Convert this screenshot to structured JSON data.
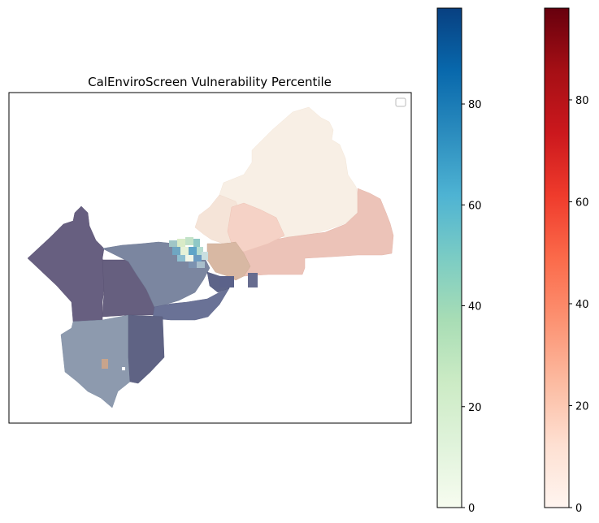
{
  "map": {
    "title": "CalEnviroScreen Vulnerability Percentile",
    "legend_visible": true,
    "legend_entries": [],
    "legend_placement": "upper-right",
    "axes_ticks": "hidden"
  },
  "colorbars": [
    {
      "id": "blue",
      "colormap": "GnBu",
      "range": [
        0,
        99
      ],
      "ticks": [
        0,
        20,
        40,
        60,
        80
      ],
      "tick_labels": [
        "0",
        "20",
        "40",
        "60",
        "80"
      ],
      "stops": [
        "#f7fcf0",
        "#e0f3db",
        "#ccebc5",
        "#a8ddb5",
        "#7bccc4",
        "#4eb3d3",
        "#2b8cbe",
        "#0868ac",
        "#084081"
      ]
    },
    {
      "id": "red",
      "colormap": "Reds",
      "range": [
        0,
        98
      ],
      "ticks": [
        0,
        20,
        40,
        60,
        80
      ],
      "tick_labels": [
        "0",
        "20",
        "40",
        "60",
        "80"
      ],
      "stops": [
        "#fff5f0",
        "#fee0d2",
        "#fcbba1",
        "#fc9272",
        "#fb6a4a",
        "#ef3b2c",
        "#cb181d",
        "#a50f15",
        "#67000d"
      ]
    }
  ],
  "regions_palette": {
    "dark_slate": "#675f80",
    "slate_blue": "#7b86a0",
    "grey_blue": "#8d9aae",
    "light_cream": "#f8efe5",
    "peach_light": "#f5d7cc",
    "peach": "#ecc3b8",
    "navy_slate": "#5f6384"
  }
}
